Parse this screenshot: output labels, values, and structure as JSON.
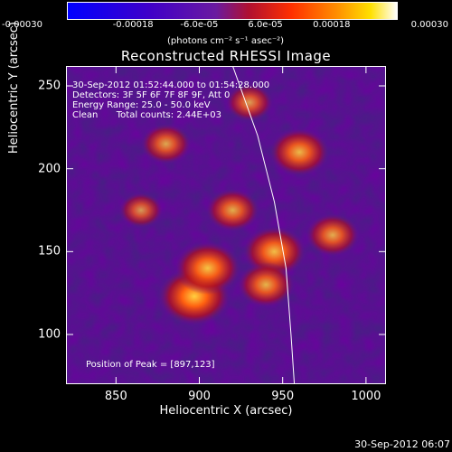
{
  "chart_data": {
    "type": "heatmap",
    "title": "Reconstructed RHESSI Image",
    "xlabel": "Heliocentric X (arcsec)",
    "ylabel": "Heliocentric Y (arcsec)",
    "xlim": [
      820,
      1012
    ],
    "ylim": [
      70,
      262
    ],
    "x_ticks": [
      850,
      900,
      950,
      1000
    ],
    "y_ticks": [
      100,
      150,
      200,
      250
    ],
    "colorbar": {
      "ticks": [
        "-0.00030",
        "-0.00018",
        "-6.0e-05",
        "6.0e-05",
        "0.00018",
        "0.00030"
      ],
      "tick_values": [
        -0.0003,
        -0.00018,
        -6e-05,
        6e-05,
        0.00018,
        0.0003
      ],
      "range": [
        -0.0003,
        0.0003
      ],
      "unit": "(photons cm⁻² s⁻¹ asec⁻²)"
    },
    "annotations": {
      "time_range": "30-Sep-2012 01:52:44.000 to 01:54:28.000",
      "detectors": "Detectors: 3F 5F 6F 7F 8F 9F, Att 0",
      "energy_range": "Energy Range: 25.0 - 50.0 keV",
      "clean": "Clean",
      "total_counts": "Total counts: 2.44E+03",
      "peak": "Position of Peak = [897,123]"
    },
    "peak_position": [
      897,
      123
    ],
    "hotspots": [
      {
        "x": 897,
        "y": 123,
        "value": 0.0003
      },
      {
        "x": 905,
        "y": 140,
        "value": 0.00026
      },
      {
        "x": 920,
        "y": 175,
        "value": 0.00018
      },
      {
        "x": 945,
        "y": 150,
        "value": 0.00024
      },
      {
        "x": 940,
        "y": 130,
        "value": 0.0002
      },
      {
        "x": 960,
        "y": 210,
        "value": 0.00022
      },
      {
        "x": 980,
        "y": 160,
        "value": 0.00018
      },
      {
        "x": 880,
        "y": 215,
        "value": 0.00016
      },
      {
        "x": 930,
        "y": 240,
        "value": 0.00014
      },
      {
        "x": 865,
        "y": 175,
        "value": 0.00012
      }
    ],
    "limb_curve": [
      [
        920,
        262
      ],
      [
        935,
        220
      ],
      [
        945,
        180
      ],
      [
        952,
        140
      ],
      [
        955,
        100
      ],
      [
        957,
        70
      ]
    ],
    "colors": {
      "background": "#000000",
      "text": "#ffffff",
      "limb": "#ffffff"
    }
  },
  "footer": {
    "timestamp": "30-Sep-2012 06:07"
  }
}
